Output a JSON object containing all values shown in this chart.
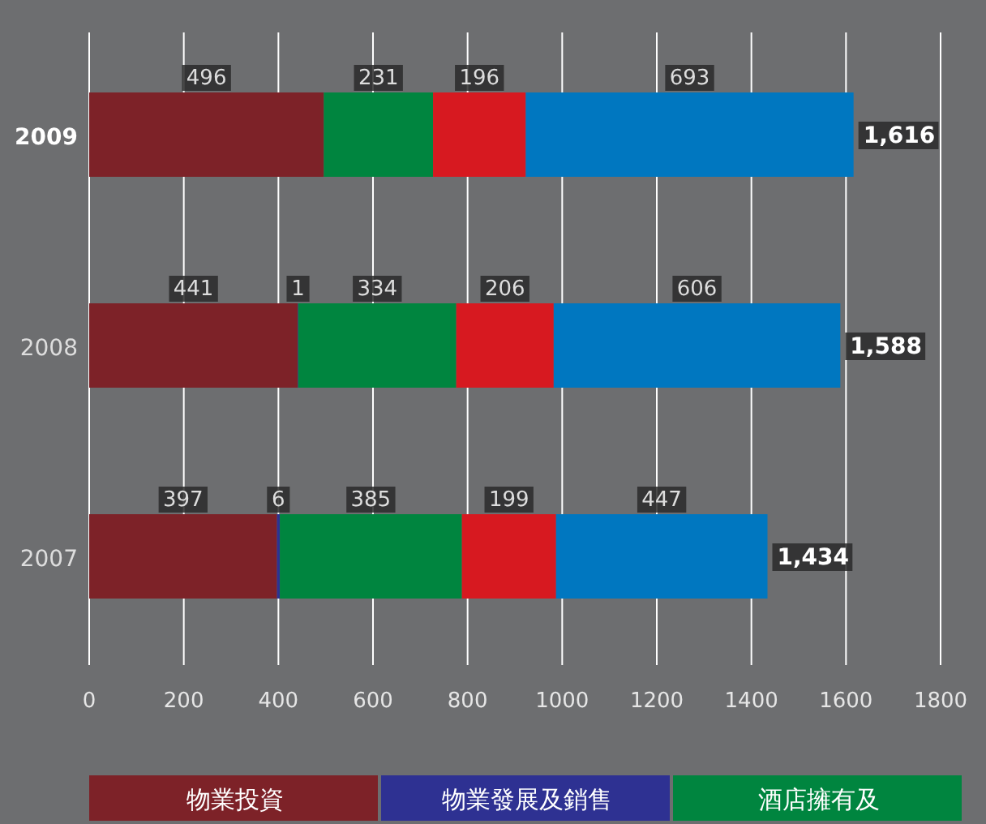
{
  "chart_data": {
    "type": "bar",
    "orientation": "horizontal",
    "stacked": true,
    "categories": [
      "2009",
      "2008",
      "2007"
    ],
    "series": [
      {
        "name": "物業投資",
        "color": "#7d2228",
        "values": [
          496,
          441,
          397
        ]
      },
      {
        "name": "物業發展及銷售",
        "color": "#2e3192",
        "values": [
          null,
          1,
          6
        ]
      },
      {
        "name": "酒店擁有及",
        "color": "#00853f",
        "values": [
          231,
          334,
          385
        ]
      },
      {
        "color": "#d71920",
        "values": [
          196,
          206,
          199
        ]
      },
      {
        "color": "#0077c0",
        "values": [
          693,
          606,
          447
        ]
      }
    ],
    "totals": [
      "1,616",
      "1,588",
      "1,434"
    ],
    "data_labels": true,
    "xlim": [
      0,
      1800
    ],
    "xticks": [
      0,
      200,
      400,
      600,
      800,
      1000,
      1200,
      1400,
      1600,
      1800
    ],
    "grid": "x",
    "legend": "bottom"
  }
}
